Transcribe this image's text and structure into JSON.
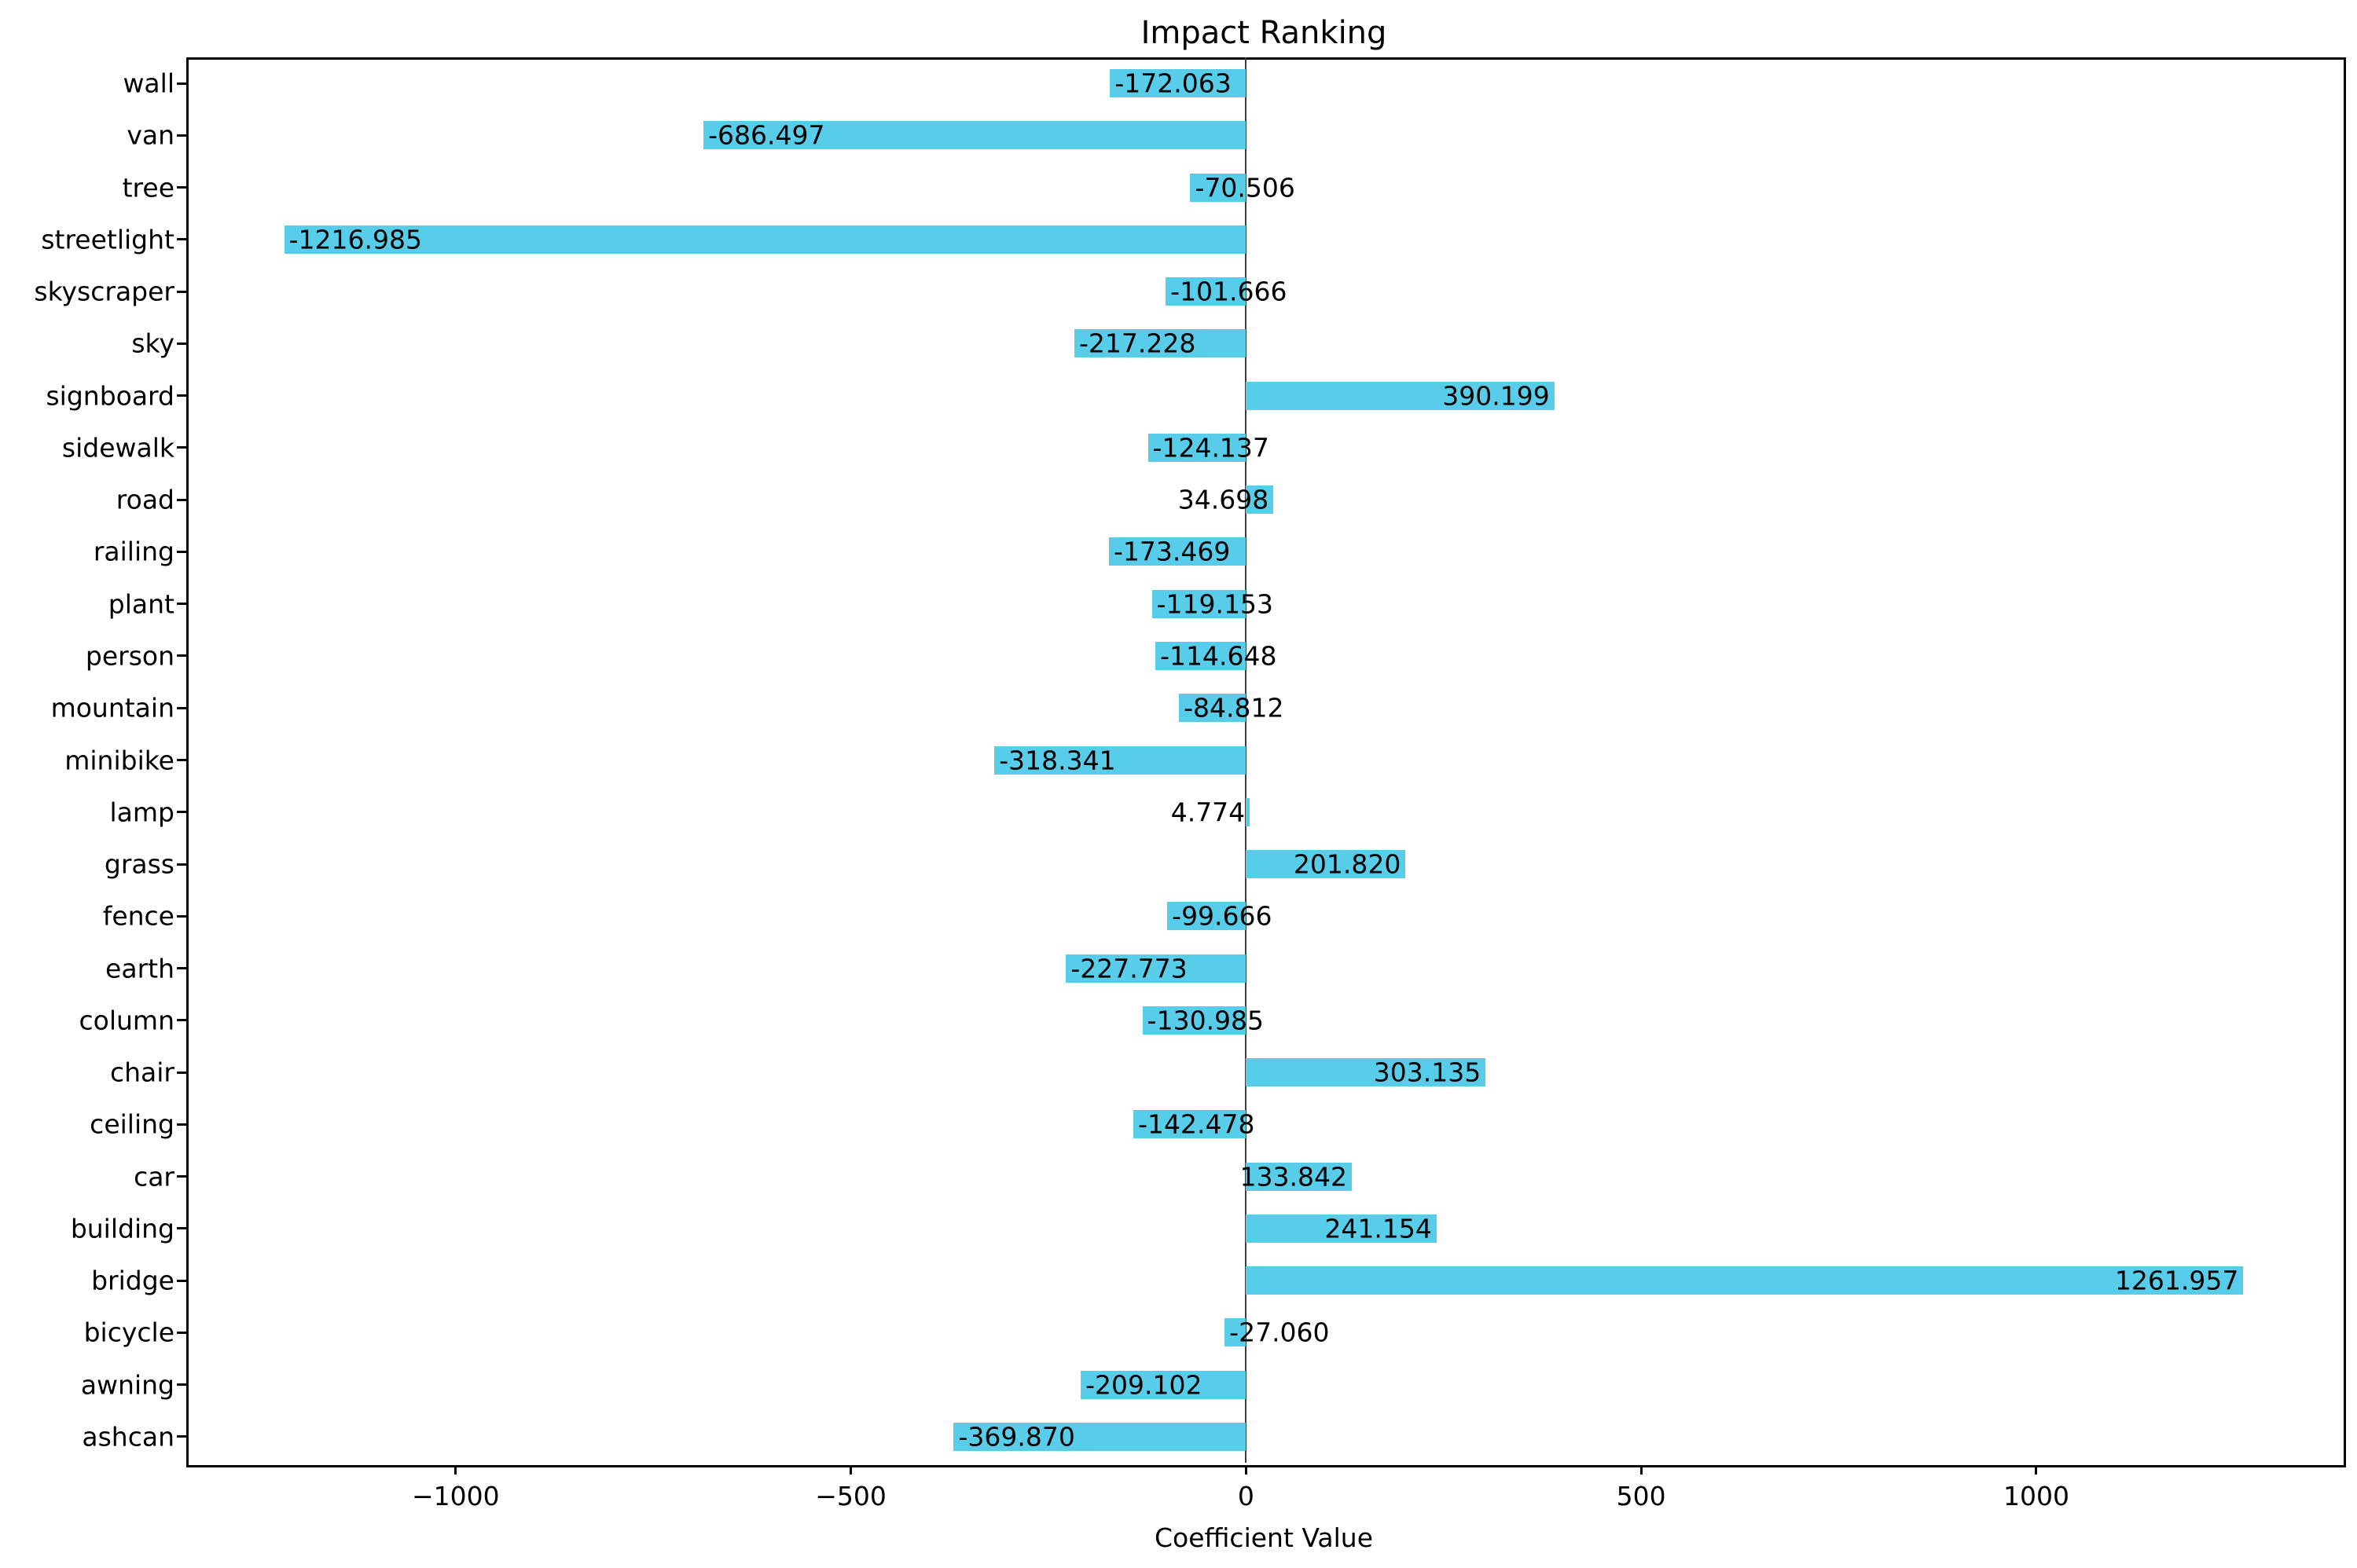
{
  "title": "Impact Ranking",
  "xlabel": "Coefficient Value",
  "colors": {
    "bar_fill": "#57cdea",
    "zero_line": "#3c3c3c",
    "spine": "#000000",
    "text": "#000000",
    "background": "#ffffff"
  },
  "chart_data": {
    "type": "bar",
    "orientation": "horizontal",
    "title": "Impact Ranking",
    "xlabel": "Coefficient Value",
    "ylabel": "",
    "grid": false,
    "legend_position": "none",
    "bar_color": "#57cdea",
    "xlim": [
      -1340.93,
      1385.9
    ],
    "categories_top_to_bottom": [
      "wall",
      "van",
      "tree",
      "streetlight",
      "skyscraper",
      "sky",
      "signboard",
      "sidewalk",
      "road",
      "railing",
      "plant",
      "person",
      "mountain",
      "minibike",
      "lamp",
      "grass",
      "fence",
      "earth",
      "column",
      "chair",
      "ceiling",
      "car",
      "building",
      "bridge",
      "bicycle",
      "awning",
      "ashcan"
    ],
    "values": [
      -172.063,
      -686.497,
      -70.506,
      -1216.985,
      -101.666,
      -217.228,
      390.199,
      -124.137,
      34.698,
      -173.469,
      -119.153,
      -114.648,
      -84.812,
      -318.341,
      4.774,
      201.82,
      -99.666,
      -227.773,
      -130.985,
      303.135,
      -142.478,
      133.842,
      241.154,
      1261.957,
      -27.06,
      -209.102,
      -369.87
    ],
    "value_labels": [
      "-172.063",
      "-686.497",
      "-70.506",
      "-1216.985",
      "-101.666",
      "-217.228",
      "390.199",
      "-124.137",
      "34.698",
      "-173.469",
      "-119.153",
      "-114.648",
      "-84.812",
      "-318.341",
      "4.774",
      "201.820",
      "-99.666",
      "-227.773",
      "-130.985",
      "303.135",
      "-142.478",
      "133.842",
      "241.154",
      "1261.957",
      "-27.060",
      "-209.102",
      "-369.870"
    ],
    "xticks": {
      "values": [
        -1000,
        -500,
        0,
        500,
        1000
      ],
      "labels": [
        "−1000",
        "−500",
        "0",
        "500",
        "1000"
      ]
    }
  }
}
